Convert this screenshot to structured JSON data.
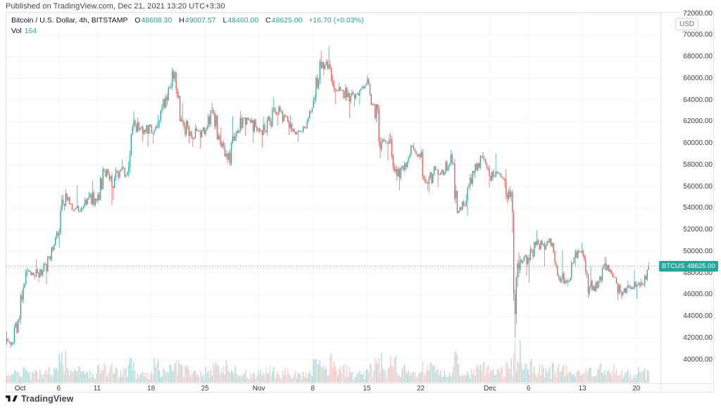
{
  "header": {
    "published_line": "Published on TradingView.com, Dec 21, 2021 13:20 UTC+3:30"
  },
  "legend": {
    "symbol_title": "Bitcoin / U.S. Dollar, 4h, BITSTAMP",
    "ohlc": [
      {
        "label": "O",
        "value": "48608.30"
      },
      {
        "label": "H",
        "value": "49007.57"
      },
      {
        "label": "L",
        "value": "48460.00"
      },
      {
        "label": "C",
        "value": "48625.00"
      }
    ],
    "change": "+16.70 (+0.03%)",
    "vol_label": "Vol",
    "vol_value": "164"
  },
  "price_axis": {
    "currency_badge": "USD",
    "values": [
      72000,
      70000,
      68000,
      66000,
      64000,
      62000,
      60000,
      58000,
      56000,
      54000,
      52000,
      50000,
      48000,
      46000,
      44000,
      42000,
      40000
    ],
    "last_price_badge": {
      "symbol": "BTCUSD",
      "value": "48625.00"
    }
  },
  "time_axis": {
    "ticks": [
      {
        "label": "Oct",
        "day": 0,
        "month": true
      },
      {
        "label": "6",
        "day": 5,
        "month": false
      },
      {
        "label": "11",
        "day": 10,
        "month": false
      },
      {
        "label": "18",
        "day": 17,
        "month": false
      },
      {
        "label": "25",
        "day": 24,
        "month": false
      },
      {
        "label": "Nov",
        "day": 31,
        "month": true
      },
      {
        "label": "8",
        "day": 38,
        "month": false
      },
      {
        "label": "15",
        "day": 45,
        "month": false
      },
      {
        "label": "22",
        "day": 52,
        "month": false
      },
      {
        "label": "Dec",
        "day": 61,
        "month": true
      },
      {
        "label": "6",
        "day": 66,
        "month": false
      },
      {
        "label": "13",
        "day": 73,
        "month": false
      },
      {
        "label": "20",
        "day": 80,
        "month": false
      }
    ]
  },
  "footer": {
    "logo_text": "TradingView"
  },
  "colors": {
    "up": "#26a69a",
    "down": "#ef5350",
    "vol_up": "rgba(38,166,154,0.40)",
    "vol_down": "rgba(239,83,80,0.32)",
    "grid": "#f0f3fa",
    "border": "#e0e3eb",
    "last_price_line": "#26a69a"
  },
  "chart_data": {
    "type": "candlestick+volume",
    "symbol": "BTCUSD",
    "exchange": "BITSTAMP",
    "interval": "4h",
    "current_price": 48625.0,
    "last_candle": {
      "o": 48608.3,
      "h": 49007.57,
      "l": 48460.0,
      "c": 48625.0,
      "vol": 164,
      "change": "+16.70",
      "change_pct": "+0.03%"
    },
    "y_range": [
      40000,
      72000
    ],
    "last_day_sub_candles": 4,
    "daily_ohlcv": [
      [
        "Sep 29",
        41800,
        42600,
        41050,
        41530,
        0.3
      ],
      [
        "Sep 30",
        41530,
        44100,
        41300,
        43790,
        0.35
      ],
      [
        "Oct 1",
        43790,
        48470,
        43300,
        48170,
        0.55
      ],
      [
        "Oct 2",
        48170,
        48340,
        47430,
        47690,
        0.3
      ],
      [
        "Oct 3",
        47690,
        49230,
        47130,
        48220,
        0.3
      ],
      [
        "Oct 4",
        48220,
        49540,
        46960,
        49240,
        0.45
      ],
      [
        "Oct 5",
        49240,
        51900,
        49060,
        51490,
        0.45
      ],
      [
        "Oct 6",
        51490,
        55750,
        50380,
        55340,
        0.85
      ],
      [
        "Oct 7",
        55340,
        55360,
        53650,
        53810,
        0.5
      ],
      [
        "Oct 8",
        53810,
        56100,
        53670,
        53970,
        0.4
      ],
      [
        "Oct 9",
        53970,
        55500,
        53700,
        54960,
        0.3
      ],
      [
        "Oct 10",
        54960,
        56500,
        54100,
        54690,
        0.32
      ],
      [
        "Oct 11",
        54690,
        57830,
        54420,
        57480,
        0.48
      ],
      [
        "Oct 12",
        57480,
        57630,
        54220,
        56000,
        0.45
      ],
      [
        "Oct 13",
        56000,
        57770,
        54770,
        57370,
        0.42
      ],
      [
        "Oct 14",
        57370,
        58520,
        56820,
        57350,
        0.35
      ],
      [
        "Oct 15",
        57350,
        62930,
        56870,
        61670,
        0.6
      ],
      [
        "Oct 16",
        61670,
        62380,
        60170,
        60880,
        0.35
      ],
      [
        "Oct 17",
        60880,
        61720,
        59620,
        61530,
        0.3
      ],
      [
        "Oct 18",
        61530,
        62600,
        59960,
        62030,
        0.6
      ],
      [
        "Oct 19",
        62030,
        64480,
        61420,
        64290,
        0.5
      ],
      [
        "Oct 20",
        64290,
        67000,
        63480,
        66000,
        0.55
      ],
      [
        "Oct 21",
        66000,
        66640,
        62000,
        62210,
        0.6
      ],
      [
        "Oct 22",
        62210,
        63720,
        60000,
        60690,
        0.45
      ],
      [
        "Oct 23",
        60690,
        61750,
        59640,
        61130,
        0.3
      ],
      [
        "Oct 24",
        61130,
        61500,
        59510,
        60850,
        0.3
      ],
      [
        "Oct 25",
        60850,
        63730,
        60610,
        63080,
        0.42
      ],
      [
        "Oct 26",
        63080,
        63290,
        59820,
        60300,
        0.48
      ],
      [
        "Oct 27",
        60300,
        61480,
        58100,
        58470,
        0.52
      ],
      [
        "Oct 28",
        58470,
        62500,
        57900,
        60600,
        0.5
      ],
      [
        "Oct 29",
        60600,
        62980,
        60170,
        62250,
        0.4
      ],
      [
        "Oct 30",
        62250,
        62360,
        60680,
        61890,
        0.3
      ],
      [
        "Oct 31",
        61890,
        62410,
        60030,
        61320,
        0.28
      ],
      [
        "Nov 1",
        61320,
        62440,
        59570,
        61000,
        0.4
      ],
      [
        "Nov 2",
        61000,
        64270,
        60670,
        63220,
        0.42
      ],
      [
        "Nov 3",
        63220,
        63520,
        61580,
        62900,
        0.35
      ],
      [
        "Nov 4",
        62900,
        63090,
        60740,
        61430,
        0.35
      ],
      [
        "Nov 5",
        61430,
        62540,
        60790,
        60970,
        0.3
      ],
      [
        "Nov 6",
        60970,
        61560,
        60100,
        61470,
        0.25
      ],
      [
        "Nov 7",
        61470,
        63290,
        61360,
        63270,
        0.3
      ],
      [
        "Nov 8",
        63270,
        67790,
        63270,
        67550,
        0.55
      ],
      [
        "Nov 9",
        67550,
        68530,
        66250,
        66930,
        0.5
      ],
      [
        "Nov 10",
        66930,
        68990,
        63600,
        64950,
        0.7
      ],
      [
        "Nov 11",
        64950,
        65600,
        64110,
        64800,
        0.4
      ],
      [
        "Nov 12",
        64800,
        65450,
        62300,
        64380,
        0.45
      ],
      [
        "Nov 13",
        64380,
        64970,
        63360,
        64400,
        0.28
      ],
      [
        "Nov 14",
        64400,
        65500,
        63580,
        65500,
        0.3
      ],
      [
        "Nov 15",
        65500,
        66280,
        63500,
        63600,
        0.45
      ],
      [
        "Nov 16",
        63600,
        63610,
        58600,
        60100,
        0.72
      ],
      [
        "Nov 17",
        60100,
        60800,
        58380,
        60370,
        0.45
      ],
      [
        "Nov 18",
        60370,
        60950,
        56500,
        56940,
        0.62
      ],
      [
        "Nov 19",
        56940,
        58320,
        55640,
        58100,
        0.48
      ],
      [
        "Nov 20",
        58100,
        59850,
        57450,
        59730,
        0.33
      ],
      [
        "Nov 21",
        59730,
        60000,
        58500,
        58700,
        0.28
      ],
      [
        "Nov 22",
        58700,
        59450,
        55630,
        56250,
        0.5
      ],
      [
        "Nov 23",
        56250,
        57870,
        55420,
        57570,
        0.45
      ],
      [
        "Nov 24",
        57570,
        57590,
        55930,
        57100,
        0.38
      ],
      [
        "Nov 25",
        57100,
        59370,
        57010,
        58960,
        0.35
      ],
      [
        "Nov 26",
        58960,
        59150,
        53520,
        53700,
        0.75
      ],
      [
        "Nov 27",
        53700,
        55280,
        53610,
        54700,
        0.33
      ],
      [
        "Nov 28",
        54700,
        57440,
        53290,
        57270,
        0.4
      ],
      [
        "Nov 29",
        57270,
        58850,
        56750,
        58750,
        0.45
      ],
      [
        "Nov 30",
        58750,
        59200,
        55890,
        57000,
        0.48
      ],
      [
        "Dec 1",
        57000,
        59050,
        56480,
        57200,
        0.45
      ],
      [
        "Dec 2",
        57200,
        57380,
        55880,
        56500,
        0.38
      ],
      [
        "Dec 3",
        56500,
        57600,
        51680,
        53600,
        0.58
      ],
      [
        "Dec 4",
        53600,
        53860,
        42000,
        49200,
        1.0,
        [
          46000,
          44200,
          47600,
          48900,
          48300,
          49200
        ]
      ],
      [
        "Dec 5",
        49200,
        49700,
        47730,
        49400,
        0.45
      ],
      [
        "Dec 6",
        49400,
        50890,
        47100,
        50580,
        0.6
      ],
      [
        "Dec 7",
        50580,
        51940,
        50070,
        50700,
        0.45
      ],
      [
        "Dec 8",
        50700,
        51180,
        48640,
        50500,
        0.4
      ],
      [
        "Dec 9",
        50500,
        50800,
        47320,
        47600,
        0.45
      ],
      [
        "Dec 10",
        47600,
        50100,
        47000,
        47150,
        0.5
      ],
      [
        "Dec 11",
        47150,
        49480,
        46750,
        49400,
        0.33
      ],
      [
        "Dec 12",
        49400,
        50770,
        48630,
        50050,
        0.3
      ],
      [
        "Dec 13",
        50050,
        50200,
        45670,
        46700,
        0.6
      ],
      [
        "Dec 14",
        46700,
        48650,
        46290,
        46650,
        0.45
      ],
      [
        "Dec 15",
        46650,
        49500,
        46550,
        48870,
        0.5
      ],
      [
        "Dec 16",
        48870,
        49430,
        47540,
        47650,
        0.35
      ],
      [
        "Dec 17",
        47650,
        47990,
        45460,
        46200,
        0.45
      ],
      [
        "Dec 18",
        46200,
        47300,
        45550,
        46850,
        0.3
      ],
      [
        "Dec 19",
        46850,
        48280,
        46450,
        46700,
        0.25
      ],
      [
        "Dec 20",
        46700,
        47500,
        45580,
        46900,
        0.4
      ],
      [
        "Dec 21",
        46900,
        49007.57,
        46630,
        48625,
        0.35
      ]
    ]
  }
}
